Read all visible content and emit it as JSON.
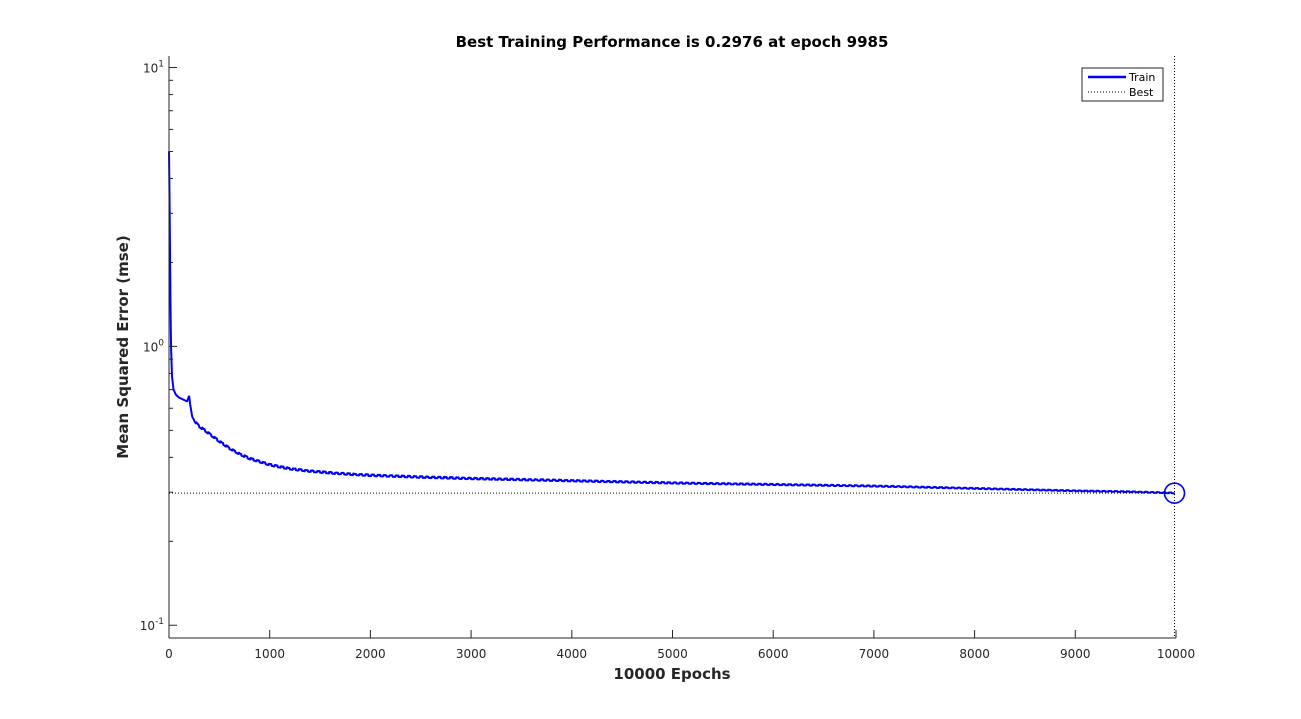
{
  "chart_data": {
    "type": "line",
    "title": "Best Training Performance is 0.2976 at epoch 9985",
    "xlabel": "10000 Epochs",
    "ylabel": "Mean Squared Error  (mse)",
    "xlim": [
      0,
      10000
    ],
    "ylim": [
      0.09,
      11
    ],
    "yscale": "log",
    "xticks": [
      "0",
      "1000",
      "2000",
      "3000",
      "4000",
      "5000",
      "6000",
      "7000",
      "8000",
      "9000",
      "10000"
    ],
    "yticks": [
      {
        "base": "10",
        "exp": "-1",
        "value": 0.1
      },
      {
        "base": "10",
        "exp": "0",
        "value": 1
      },
      {
        "base": "10",
        "exp": "1",
        "value": 10
      }
    ],
    "legend_position": "top-right",
    "grid": false,
    "series": [
      {
        "name": "Train",
        "color": "#0000ff",
        "style": "solid",
        "points": [
          [
            0,
            5.0
          ],
          [
            5,
            3.5
          ],
          [
            10,
            2.2
          ],
          [
            15,
            1.4
          ],
          [
            20,
            1.0
          ],
          [
            30,
            0.78
          ],
          [
            45,
            0.7
          ],
          [
            70,
            0.67
          ],
          [
            100,
            0.655
          ],
          [
            140,
            0.645
          ],
          [
            180,
            0.635
          ],
          [
            200,
            0.665
          ],
          [
            210,
            0.62
          ],
          [
            230,
            0.56
          ],
          [
            260,
            0.535
          ],
          [
            300,
            0.515
          ],
          [
            350,
            0.5
          ],
          [
            400,
            0.485
          ],
          [
            500,
            0.455
          ],
          [
            600,
            0.43
          ],
          [
            700,
            0.41
          ],
          [
            800,
            0.395
          ],
          [
            900,
            0.385
          ],
          [
            1000,
            0.375
          ],
          [
            1200,
            0.363
          ],
          [
            1400,
            0.356
          ],
          [
            1600,
            0.351
          ],
          [
            1800,
            0.347
          ],
          [
            2000,
            0.344
          ],
          [
            2500,
            0.339
          ],
          [
            3000,
            0.335
          ],
          [
            3500,
            0.332
          ],
          [
            4000,
            0.329
          ],
          [
            4500,
            0.326
          ],
          [
            5000,
            0.323
          ],
          [
            5500,
            0.321
          ],
          [
            6000,
            0.319
          ],
          [
            6500,
            0.317
          ],
          [
            7000,
            0.315
          ],
          [
            7500,
            0.312
          ],
          [
            8000,
            0.309
          ],
          [
            8500,
            0.306
          ],
          [
            9000,
            0.303
          ],
          [
            9500,
            0.301
          ],
          [
            9985,
            0.2976
          ]
        ],
        "noise_amplitude": 0.012
      },
      {
        "name": "Best",
        "color": "#000000",
        "style": "dotted",
        "value": 0.2976
      }
    ],
    "best_point": {
      "epoch": 9985,
      "value": 0.2976
    }
  }
}
